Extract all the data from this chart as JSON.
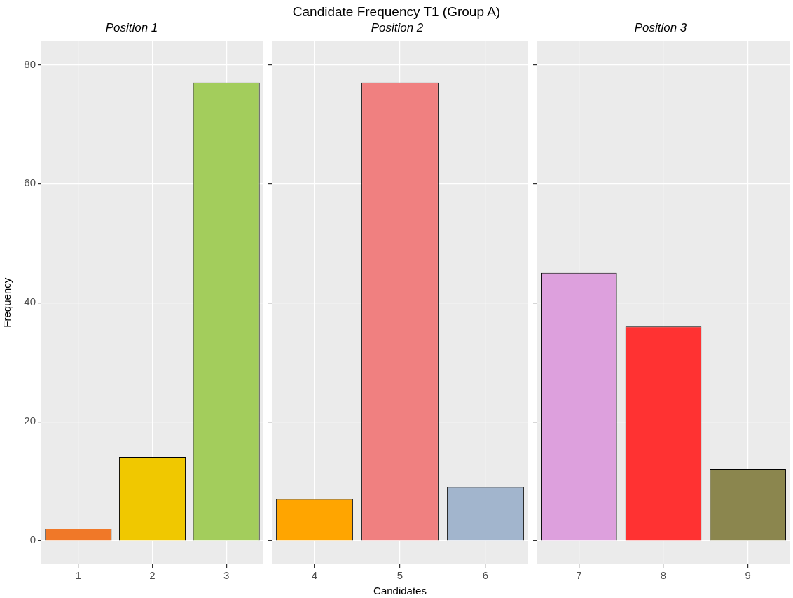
{
  "chart_data": [
    {
      "type": "bar",
      "subtitle": "Position 1",
      "ylabel": "Frequency",
      "categories": [
        "1",
        "2",
        "3"
      ],
      "values": [
        2,
        14,
        77
      ],
      "colors": [
        "#f07828",
        "#f0c800",
        "#a3cd5c"
      ],
      "ylim": [
        -4,
        84
      ],
      "yticks": [
        0,
        20,
        40,
        60,
        80
      ],
      "grid": true
    },
    {
      "type": "bar",
      "title": "Candidate Frequency T1 (Group A)",
      "subtitle": "Position 2",
      "xlabel": "Candidates",
      "categories": [
        "4",
        "5",
        "6"
      ],
      "values": [
        7,
        77,
        9
      ],
      "colors": [
        "#ffa500",
        "#f08080",
        "#a2b5cd"
      ],
      "ylim": [
        -4,
        84
      ],
      "yticks": [
        0,
        20,
        40,
        60,
        80
      ],
      "grid": true,
      "tick_labels": "x"
    },
    {
      "type": "bar",
      "subtitle": "Position 3",
      "categories": [
        "7",
        "8",
        "9"
      ],
      "values": [
        45,
        36,
        12
      ],
      "colors": [
        "#dda0dd",
        "#ff3232",
        "#8b864e"
      ],
      "ylim": [
        -4,
        84
      ],
      "yticks": [
        0,
        20,
        40,
        60,
        80
      ],
      "grid": true,
      "tick_labels": "x"
    }
  ]
}
